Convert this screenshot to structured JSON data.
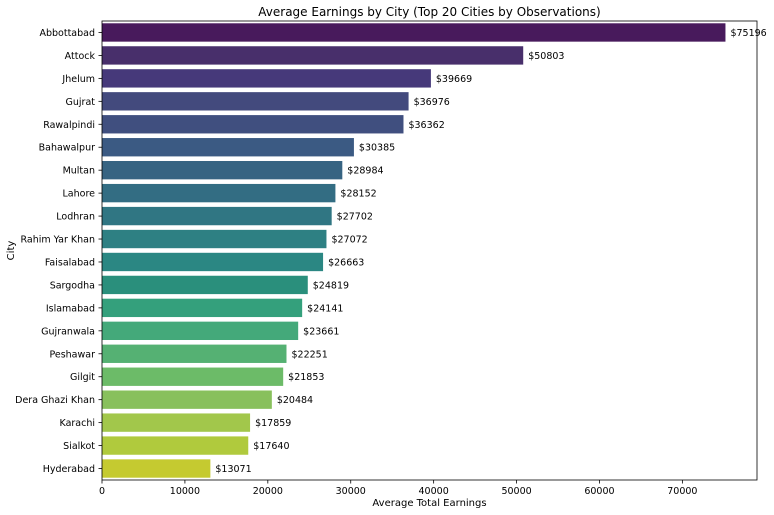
{
  "chart_data": {
    "type": "bar",
    "orientation": "horizontal",
    "title": "Average Earnings by City (Top 20 Cities by Observations)",
    "xlabel": "Average Total Earnings",
    "ylabel": "City",
    "xlim": [
      0,
      79000
    ],
    "xticks": [
      "0",
      "10000",
      "20000",
      "30000",
      "40000",
      "50000",
      "60000",
      "70000"
    ],
    "xtick_values": [
      0,
      10000,
      20000,
      30000,
      40000,
      50000,
      60000,
      70000
    ],
    "grid": false,
    "legend": "none",
    "value_prefix": "$",
    "categories": [
      "Abbottabad",
      "Attock",
      "Jhelum",
      "Gujrat",
      "Rawalpindi",
      "Bahawalpur",
      "Multan",
      "Lahore",
      "Lodhran",
      "Rahim Yar Khan",
      "Faisalabad",
      "Sargodha",
      "Islamabad",
      "Gujranwala",
      "Peshawar",
      "Gilgit",
      "Dera Ghazi Khan",
      "Karachi",
      "Sialkot",
      "Hyderabad"
    ],
    "values": [
      75196,
      50803,
      39669,
      36976,
      36362,
      30385,
      28984,
      28152,
      27702,
      27072,
      26663,
      24819,
      24141,
      23661,
      22251,
      21853,
      20484,
      17859,
      17640,
      13071
    ],
    "data_labels": [
      "$75196",
      "$50803",
      "$39669",
      "$36976",
      "$36362",
      "$30385",
      "$28984",
      "$28152",
      "$27702",
      "$27072",
      "$26663",
      "$24819",
      "$24141",
      "$23661",
      "$22251",
      "$21853",
      "$20484",
      "$17859",
      "$17640",
      "$13071"
    ],
    "colors": [
      "#481a5c",
      "#482f6b",
      "#46397a",
      "#434a7d",
      "#404f7f",
      "#3b5a83",
      "#376482",
      "#336d83",
      "#307683",
      "#2e8083",
      "#2b8783",
      "#2a8f7c",
      "#34a07c",
      "#44a97a",
      "#55b173",
      "#6cbb68",
      "#88c05c",
      "#a2c74b",
      "#b0ca3d",
      "#c5ca30"
    ]
  }
}
